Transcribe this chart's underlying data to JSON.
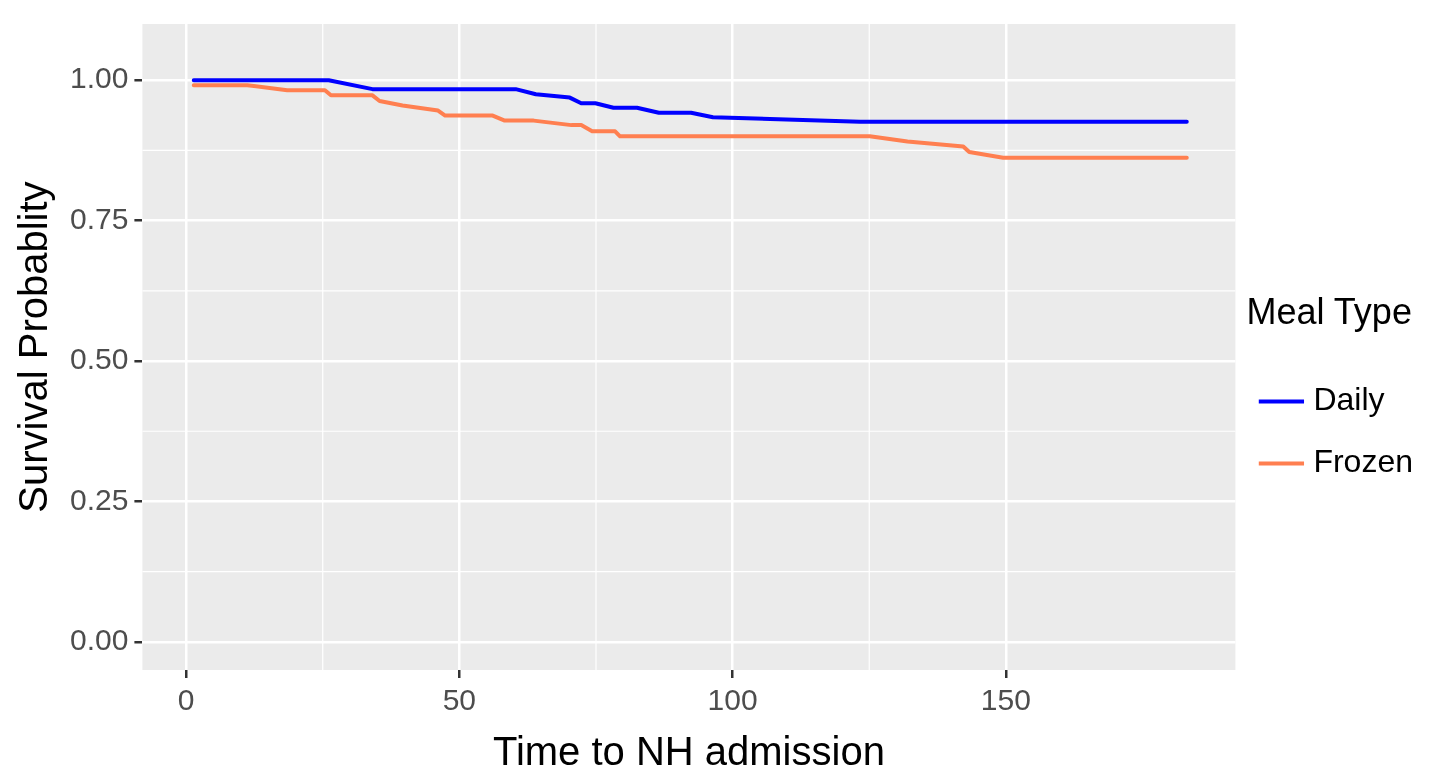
{
  "chart_data": {
    "type": "line",
    "xlabel": "Time to NH admission",
    "ylabel": "Survival Probablity",
    "legend_title": "Meal Type",
    "xlim": [
      -8,
      192
    ],
    "xticks": [
      0,
      50,
      100,
      150
    ],
    "ylim": [
      -0.05,
      1.1
    ],
    "yticks": [
      {
        "value": 0,
        "label": "0.00"
      },
      {
        "value": 0.25,
        "label": "0.25"
      },
      {
        "value": 0.5,
        "label": "0.50"
      },
      {
        "value": 0.75,
        "label": "0.75"
      },
      {
        "value": 1,
        "label": "1.00"
      }
    ],
    "grid": true,
    "legend": "right",
    "marker": "none",
    "line_style": "solid",
    "series": [
      {
        "name": "Daily",
        "color": "#0000ff",
        "x": [
          1.4,
          26.1,
          34.1,
          60.3,
          64,
          70.2,
          72.3,
          74.9,
          78.2,
          82.5,
          86.5,
          92.4,
          96.4,
          123.3,
          183.1
        ],
        "values": [
          1,
          1,
          0.984,
          0.984,
          0.975,
          0.969,
          0.959,
          0.959,
          0.951,
          0.951,
          0.942,
          0.942,
          0.934,
          0.926,
          0.926
        ]
      },
      {
        "name": "Frozen",
        "color": "#ff7f50",
        "x": [
          1.4,
          11.2,
          18.5,
          25.4,
          26.5,
          34.1,
          35.4,
          39.6,
          46.1,
          47.4,
          56.1,
          58.3,
          63.6,
          70.5,
          72.3,
          74.3,
          78.5,
          79.4,
          125.1,
          132,
          142.2,
          143.3,
          149.5,
          183.1
        ],
        "values": [
          0.991,
          0.991,
          0.982,
          0.982,
          0.973,
          0.973,
          0.963,
          0.955,
          0.946,
          0.937,
          0.937,
          0.928,
          0.928,
          0.92,
          0.92,
          0.909,
          0.909,
          0.9,
          0.9,
          0.891,
          0.882,
          0.872,
          0.862,
          0.862
        ]
      }
    ]
  }
}
